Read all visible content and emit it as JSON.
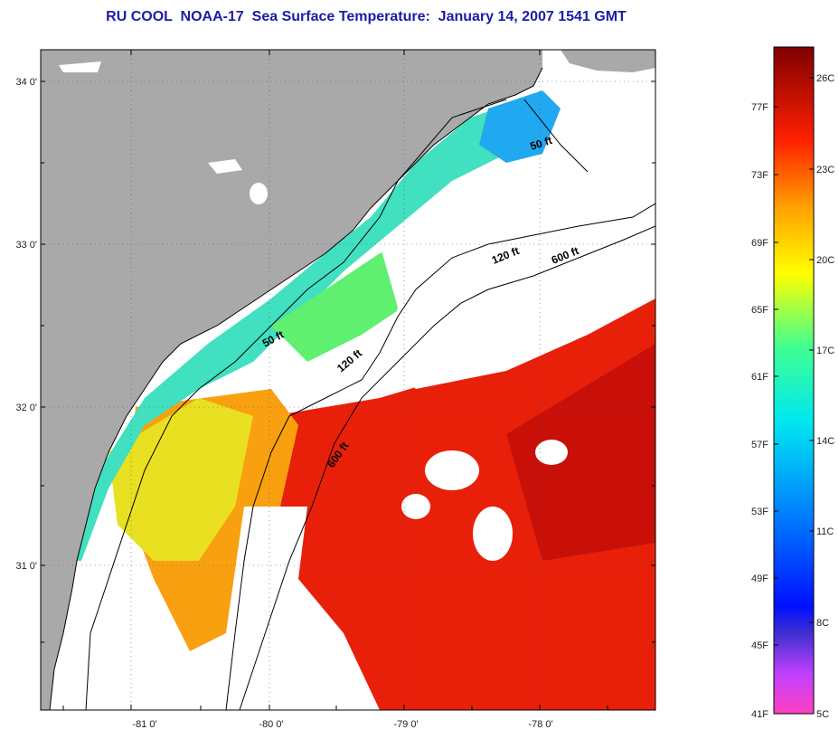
{
  "title": "RU COOL  NOAA-17  Sea Surface Temperature:  January 14, 2007 1541 GMT",
  "map": {
    "lat_labels": [
      "34 0'",
      "33 0'",
      "32 0'",
      "31 0'"
    ],
    "lon_labels": [
      "-81 0'",
      "-80 0'",
      "-79 0'",
      "-78 0'"
    ],
    "lat_range": [
      30.2,
      34.2
    ],
    "lon_range": [
      -81.7,
      -77.2
    ],
    "contours": [
      {
        "label": "50 ft"
      },
      {
        "label": "50 ft"
      },
      {
        "label": "120 ft"
      },
      {
        "label": "120 ft"
      },
      {
        "label": "600 ft"
      },
      {
        "label": "600 ft"
      }
    ],
    "colors": {
      "land": "#a9a9a9",
      "cloud": "#ffffff",
      "frame": "#000000"
    }
  },
  "colorbar": {
    "fahrenheit_labels": [
      "77F",
      "73F",
      "69F",
      "65F",
      "61F",
      "57F",
      "53F",
      "49F",
      "45F",
      "41F"
    ],
    "celsius_labels": [
      "26C",
      "23C",
      "20C",
      "17C",
      "14C",
      "11C",
      "8C",
      "5C"
    ],
    "min_c": 5,
    "max_c": 27
  }
}
